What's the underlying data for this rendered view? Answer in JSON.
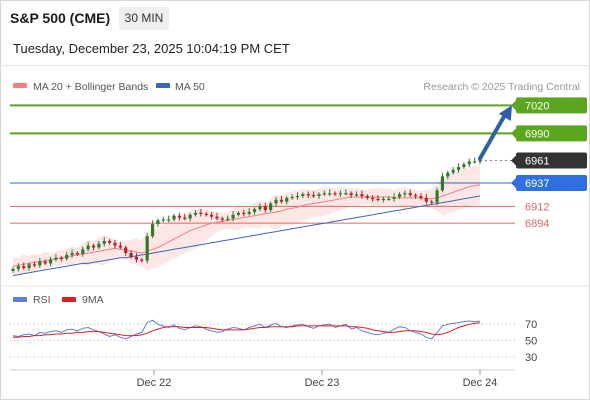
{
  "header": {
    "symbol": "S&P 500 (CME)",
    "timeframe": "30 MIN",
    "datetime": "Tuesday, December 23, 2025 10:04:19 PM CET"
  },
  "colors": {
    "candle_up": "#2d7a2d",
    "candle_down": "#b22222",
    "ma20": "#f08080",
    "bollinger_fill": "#fde3e3",
    "ma50": "#3a67b8",
    "resistance_line": "#5aa61e",
    "support_line": "#e06666",
    "pivot_line": "#3a67b8",
    "arrow": "#2f5fa8",
    "rsi": "#5b7fd6",
    "rsi_ma": "#e02020"
  },
  "legend": {
    "ma20_label": "MA 20 + Bollinger Bands",
    "ma50_label": "MA 50",
    "copyright": "Research © 2025 Trading Central"
  },
  "levels": [
    {
      "value": 7020,
      "label": "7020",
      "kind": "resistance"
    },
    {
      "value": 6990,
      "label": "6990",
      "kind": "resistance"
    },
    {
      "value": 6961,
      "label": "6961",
      "kind": "last"
    },
    {
      "value": 6937,
      "label": "6937",
      "kind": "pivot"
    },
    {
      "value": 6912,
      "label": "6912",
      "kind": "support"
    },
    {
      "value": 6894,
      "label": "6894",
      "kind": "support"
    }
  ],
  "chart_data": {
    "type": "candlestick",
    "title": "S&P 500 (CME)",
    "interval": "30 MIN",
    "ylim": [
      6830,
      7030
    ],
    "x_tick_labels": [
      "Dec 22",
      "Dec 23",
      "Dec 24"
    ],
    "close_estimate": [
      6845,
      6848,
      6846,
      6850,
      6849,
      6853,
      6851,
      6855,
      6857,
      6856,
      6860,
      6862,
      6861,
      6866,
      6870,
      6868,
      6872,
      6875,
      6873,
      6870,
      6868,
      6862,
      6858,
      6855,
      6854,
      6880,
      6893,
      6897,
      6898,
      6898,
      6902,
      6900,
      6899,
      6903,
      6905,
      6904,
      6903,
      6901,
      6899,
      6898,
      6899,
      6903,
      6905,
      6904,
      6906,
      6909,
      6912,
      6908,
      6915,
      6919,
      6917,
      6921,
      6922,
      6923,
      6925,
      6924,
      6923,
      6925,
      6926,
      6926,
      6925,
      6926,
      6926,
      6924,
      6925,
      6923,
      6921,
      6920,
      6919,
      6920,
      6920,
      6922,
      6925,
      6926,
      6924,
      6923,
      6921,
      6917,
      6916,
      6929,
      6944,
      6948,
      6951,
      6954,
      6957,
      6960,
      6960,
      6961
    ],
    "ma20_estimate": [
      6848,
      6849,
      6850,
      6851,
      6852,
      6853,
      6854,
      6855,
      6856,
      6857,
      6858,
      6859,
      6860,
      6861,
      6862,
      6863,
      6864,
      6865,
      6866,
      6867,
      6866,
      6865,
      6864,
      6863,
      6862,
      6864,
      6866,
      6868,
      6871,
      6874,
      6877,
      6880,
      6883,
      6886,
      6888,
      6890,
      6892,
      6894,
      6895,
      6896,
      6897,
      6898,
      6899,
      6900,
      6901,
      6902,
      6903,
      6904,
      6905,
      6906,
      6907,
      6909,
      6910,
      6911,
      6913,
      6914,
      6915,
      6916,
      6917,
      6918,
      6919,
      6920,
      6921,
      6922,
      6922,
      6922,
      6922,
      6922,
      6922,
      6922,
      6922,
      6921,
      6921,
      6921,
      6921,
      6921,
      6921,
      6920,
      6920,
      6921,
      6923,
      6925,
      6927,
      6929,
      6931,
      6933,
      6934,
      6935
    ],
    "ma50_estimate": [
      6838,
      6839,
      6840,
      6841,
      6842,
      6843,
      6844,
      6845,
      6846,
      6847,
      6848,
      6849,
      6850,
      6851,
      6851,
      6852,
      6853,
      6854,
      6855,
      6856,
      6857,
      6857,
      6858,
      6859,
      6860,
      6861,
      6862,
      6863,
      6864,
      6865,
      6866,
      6867,
      6868,
      6869,
      6870,
      6871,
      6872,
      6873,
      6874,
      6875,
      6876,
      6877,
      6878,
      6879,
      6880,
      6881,
      6882,
      6883,
      6884,
      6885,
      6886,
      6887,
      6888,
      6889,
      6890,
      6891,
      6892,
      6893,
      6894,
      6895,
      6896,
      6897,
      6898,
      6899,
      6900,
      6901,
      6902,
      6903,
      6904,
      6905,
      6906,
      6907,
      6908,
      6909,
      6910,
      6911,
      6912,
      6913,
      6914,
      6915,
      6916,
      6917,
      6918,
      6919,
      6920,
      6921,
      6922,
      6923
    ],
    "target": 7020,
    "rsi_panel": {
      "legend": [
        "RSI",
        "9MA"
      ],
      "y_ticks": [
        70,
        50,
        30
      ],
      "ylim": [
        20,
        85
      ],
      "rsi_estimate": [
        56,
        55,
        57,
        58,
        56,
        60,
        59,
        61,
        62,
        60,
        63,
        64,
        62,
        65,
        66,
        63,
        61,
        58,
        55,
        57,
        54,
        52,
        55,
        58,
        60,
        72,
        75,
        70,
        68,
        66,
        69,
        65,
        63,
        66,
        68,
        67,
        64,
        62,
        60,
        61,
        64,
        66,
        65,
        63,
        66,
        68,
        70,
        66,
        69,
        71,
        67,
        66,
        68,
        69,
        70,
        67,
        65,
        68,
        69,
        70,
        66,
        68,
        70,
        64,
        66,
        62,
        60,
        58,
        57,
        59,
        60,
        64,
        67,
        66,
        62,
        60,
        58,
        54,
        52,
        60,
        68,
        70,
        71,
        72,
        73,
        74,
        73,
        74
      ],
      "ma9_estimate": [
        54,
        54,
        55,
        55,
        56,
        56,
        57,
        57,
        58,
        58,
        59,
        59,
        60,
        60,
        61,
        61,
        61,
        60,
        59,
        58,
        57,
        56,
        56,
        56,
        57,
        59,
        62,
        64,
        66,
        67,
        67,
        67,
        66,
        66,
        66,
        66,
        66,
        65,
        64,
        63,
        63,
        63,
        63,
        63,
        64,
        65,
        66,
        66,
        67,
        67,
        67,
        67,
        67,
        68,
        68,
        68,
        68,
        68,
        68,
        68,
        68,
        68,
        68,
        67,
        67,
        66,
        65,
        63,
        62,
        61,
        60,
        60,
        61,
        62,
        62,
        62,
        61,
        60,
        58,
        57,
        58,
        60,
        63,
        66,
        68,
        70,
        71,
        72
      ]
    }
  }
}
